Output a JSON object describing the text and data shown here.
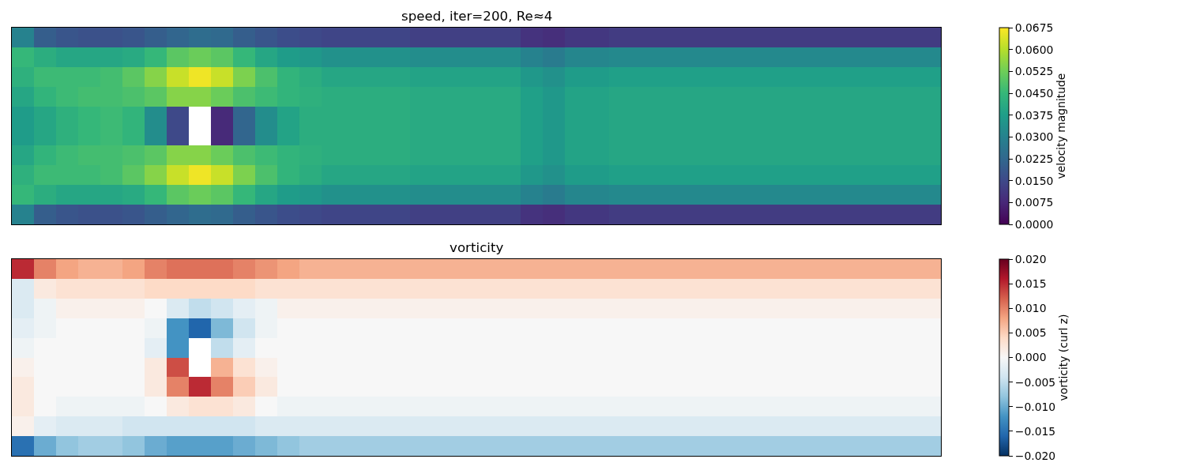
{
  "chart_data": [
    {
      "type": "heatmap",
      "title": "speed, iter=200, Re≈4",
      "clabel": "velocity magnitude",
      "categories": [
        null,
        null,
        null,
        null,
        null,
        null,
        null,
        null,
        null,
        null,
        null,
        null,
        null,
        null,
        null,
        null,
        null,
        null,
        null,
        null,
        null,
        null,
        null,
        null,
        null,
        null,
        null,
        null,
        null,
        null,
        null,
        null,
        null,
        null,
        null,
        null,
        null,
        null,
        null,
        null,
        null,
        null
      ],
      "y_categories": [
        null,
        null,
        null,
        null,
        null,
        null,
        null,
        null,
        null,
        null
      ],
      "cells": [
        [
          0.03,
          0.02,
          0.018,
          0.017,
          0.017,
          0.018,
          0.02,
          0.022,
          0.024,
          0.023,
          0.02,
          0.018,
          0.016,
          0.015,
          0.014,
          0.014,
          0.014,
          0.014,
          0.013,
          0.013,
          0.013,
          0.013,
          0.013,
          0.01,
          0.009,
          0.011,
          0.011,
          0.012,
          0.012,
          0.012,
          0.012,
          0.012,
          0.012,
          0.012,
          0.012,
          0.012,
          0.012,
          0.012,
          0.012,
          0.012,
          0.012,
          0.012
        ],
        [
          0.045,
          0.042,
          0.04,
          0.04,
          0.04,
          0.041,
          0.045,
          0.05,
          0.052,
          0.05,
          0.045,
          0.04,
          0.037,
          0.036,
          0.034,
          0.034,
          0.034,
          0.034,
          0.033,
          0.033,
          0.033,
          0.033,
          0.033,
          0.03,
          0.028,
          0.031,
          0.031,
          0.032,
          0.032,
          0.032,
          0.032,
          0.032,
          0.032,
          0.032,
          0.032,
          0.032,
          0.032,
          0.032,
          0.032,
          0.032,
          0.032,
          0.032
        ],
        [
          0.043,
          0.046,
          0.046,
          0.046,
          0.047,
          0.05,
          0.055,
          0.062,
          0.066,
          0.062,
          0.054,
          0.048,
          0.044,
          0.042,
          0.04,
          0.04,
          0.04,
          0.04,
          0.039,
          0.039,
          0.039,
          0.039,
          0.039,
          0.036,
          0.034,
          0.037,
          0.037,
          0.038,
          0.038,
          0.038,
          0.038,
          0.038,
          0.038,
          0.038,
          0.038,
          0.038,
          0.038,
          0.038,
          0.038,
          0.038,
          0.038,
          0.038
        ],
        [
          0.04,
          0.044,
          0.046,
          0.047,
          0.047,
          0.048,
          0.05,
          0.055,
          0.055,
          0.052,
          0.048,
          0.046,
          0.044,
          0.043,
          0.042,
          0.042,
          0.042,
          0.042,
          0.041,
          0.041,
          0.041,
          0.041,
          0.041,
          0.038,
          0.036,
          0.039,
          0.039,
          0.04,
          0.04,
          0.04,
          0.04,
          0.04,
          0.04,
          0.04,
          0.04,
          0.04,
          0.04,
          0.04,
          0.04,
          0.04,
          0.04,
          0.04
        ],
        [
          0.037,
          0.04,
          0.043,
          0.045,
          0.046,
          0.044,
          0.033,
          0.015,
          null,
          0.008,
          0.022,
          0.033,
          0.039,
          0.042,
          0.042,
          0.042,
          0.042,
          0.042,
          0.041,
          0.041,
          0.041,
          0.041,
          0.041,
          0.038,
          0.036,
          0.039,
          0.039,
          0.04,
          0.04,
          0.04,
          0.04,
          0.04,
          0.04,
          0.04,
          0.04,
          0.04,
          0.04,
          0.04,
          0.04,
          0.04,
          0.04,
          0.04
        ],
        [
          0.037,
          0.04,
          0.043,
          0.045,
          0.046,
          0.044,
          0.033,
          0.015,
          null,
          0.008,
          0.022,
          0.033,
          0.039,
          0.042,
          0.042,
          0.042,
          0.042,
          0.042,
          0.041,
          0.041,
          0.041,
          0.041,
          0.041,
          0.038,
          0.036,
          0.039,
          0.039,
          0.04,
          0.04,
          0.04,
          0.04,
          0.04,
          0.04,
          0.04,
          0.04,
          0.04,
          0.04,
          0.04,
          0.04,
          0.04,
          0.04,
          0.04
        ],
        [
          0.04,
          0.044,
          0.046,
          0.047,
          0.047,
          0.048,
          0.05,
          0.055,
          0.055,
          0.052,
          0.048,
          0.046,
          0.044,
          0.043,
          0.042,
          0.042,
          0.042,
          0.042,
          0.041,
          0.041,
          0.041,
          0.041,
          0.041,
          0.038,
          0.036,
          0.039,
          0.039,
          0.04,
          0.04,
          0.04,
          0.04,
          0.04,
          0.04,
          0.04,
          0.04,
          0.04,
          0.04,
          0.04,
          0.04,
          0.04,
          0.04,
          0.04
        ],
        [
          0.043,
          0.046,
          0.046,
          0.046,
          0.047,
          0.05,
          0.055,
          0.062,
          0.066,
          0.062,
          0.054,
          0.048,
          0.044,
          0.042,
          0.04,
          0.04,
          0.04,
          0.04,
          0.039,
          0.039,
          0.039,
          0.039,
          0.039,
          0.036,
          0.034,
          0.037,
          0.037,
          0.038,
          0.038,
          0.038,
          0.038,
          0.038,
          0.038,
          0.038,
          0.038,
          0.038,
          0.038,
          0.038,
          0.038,
          0.038,
          0.038,
          0.038
        ],
        [
          0.045,
          0.042,
          0.04,
          0.04,
          0.04,
          0.041,
          0.045,
          0.05,
          0.052,
          0.05,
          0.045,
          0.04,
          0.037,
          0.036,
          0.034,
          0.034,
          0.034,
          0.034,
          0.033,
          0.033,
          0.033,
          0.033,
          0.033,
          0.03,
          0.028,
          0.031,
          0.031,
          0.032,
          0.032,
          0.032,
          0.032,
          0.032,
          0.032,
          0.032,
          0.032,
          0.032,
          0.032,
          0.032,
          0.032,
          0.032,
          0.032,
          0.032
        ],
        [
          0.03,
          0.02,
          0.018,
          0.017,
          0.017,
          0.018,
          0.02,
          0.022,
          0.024,
          0.023,
          0.02,
          0.018,
          0.016,
          0.015,
          0.014,
          0.014,
          0.014,
          0.014,
          0.013,
          0.013,
          0.013,
          0.013,
          0.013,
          0.01,
          0.009,
          0.011,
          0.011,
          0.012,
          0.012,
          0.012,
          0.012,
          0.012,
          0.012,
          0.012,
          0.012,
          0.012,
          0.012,
          0.012,
          0.012,
          0.012,
          0.012,
          0.012
        ]
      ],
      "clim": [
        0,
        0.0675
      ],
      "cticks": [
        {
          "value": 0,
          "label": "0.0000"
        },
        {
          "value": 0.0075,
          "label": "0.0075"
        },
        {
          "value": 0.015,
          "label": "0.0150"
        },
        {
          "value": 0.0225,
          "label": "0.0225"
        },
        {
          "value": 0.03,
          "label": "0.0300"
        },
        {
          "value": 0.0375,
          "label": "0.0375"
        },
        {
          "value": 0.045,
          "label": "0.0450"
        },
        {
          "value": 0.0525,
          "label": "0.0525"
        },
        {
          "value": 0.06,
          "label": "0.0600"
        },
        {
          "value": 0.0675,
          "label": "0.0675"
        }
      ]
    },
    {
      "type": "heatmap",
      "title": "vorticity",
      "clabel": "vorticity (curl z)",
      "categories": [
        null,
        null,
        null,
        null,
        null,
        null,
        null,
        null,
        null,
        null,
        null,
        null,
        null,
        null,
        null,
        null,
        null,
        null,
        null,
        null,
        null,
        null,
        null,
        null,
        null,
        null,
        null,
        null,
        null,
        null,
        null,
        null,
        null,
        null,
        null,
        null,
        null,
        null,
        null,
        null,
        null,
        null
      ],
      "y_categories": [
        null,
        null,
        null,
        null,
        null,
        null,
        null,
        null,
        null,
        null
      ],
      "cells": [
        [
          0.015,
          0.01,
          0.008,
          0.007,
          0.007,
          0.008,
          0.01,
          0.011,
          0.011,
          0.011,
          0.01,
          0.009,
          0.008,
          0.007,
          0.007,
          0.007,
          0.007,
          0.007,
          0.007,
          0.007,
          0.007,
          0.007,
          0.007,
          0.007,
          0.007,
          0.007,
          0.007,
          0.007,
          0.007,
          0.007,
          0.007,
          0.007,
          0.007,
          0.007,
          0.007,
          0.007,
          0.007,
          0.007,
          0.007,
          0.007,
          0.007,
          0.007
        ],
        [
          -0.003,
          0.002,
          0.003,
          0.003,
          0.003,
          0.003,
          0.004,
          0.004,
          0.004,
          0.004,
          0.004,
          0.003,
          0.003,
          0.003,
          0.003,
          0.003,
          0.003,
          0.003,
          0.003,
          0.003,
          0.003,
          0.003,
          0.003,
          0.003,
          0.003,
          0.003,
          0.003,
          0.003,
          0.003,
          0.003,
          0.003,
          0.003,
          0.003,
          0.003,
          0.003,
          0.003,
          0.003,
          0.003,
          0.003,
          0.003,
          0.003,
          0.003
        ],
        [
          -0.003,
          -0.001,
          0.001,
          0.001,
          0.001,
          0.001,
          0,
          -0.003,
          -0.005,
          -0.004,
          -0.002,
          -0.001,
          0.001,
          0.001,
          0.001,
          0.001,
          0.001,
          0.001,
          0.001,
          0.001,
          0.001,
          0.001,
          0.001,
          0.001,
          0.001,
          0.001,
          0.001,
          0.001,
          0.001,
          0.001,
          0.001,
          0.001,
          0.001,
          0.001,
          0.001,
          0.001,
          0.001,
          0.001,
          0.001,
          0.001,
          0.001,
          0.001
        ],
        [
          -0.002,
          -0.001,
          0,
          0,
          0,
          0,
          -0.001,
          -0.012,
          -0.016,
          -0.009,
          -0.004,
          -0.001,
          0,
          0,
          0,
          0,
          0,
          0,
          0,
          0,
          0,
          0,
          0,
          0,
          0,
          0,
          0,
          0,
          0,
          0,
          0,
          0,
          0,
          0,
          0,
          0,
          0,
          0,
          0,
          0,
          0,
          0
        ],
        [
          -0.001,
          0,
          0,
          0,
          0,
          0,
          -0.002,
          -0.012,
          null,
          -0.005,
          -0.002,
          0,
          0,
          0,
          0,
          0,
          0,
          0,
          0,
          0,
          0,
          0,
          0,
          0,
          0,
          0,
          0,
          0,
          0,
          0,
          0,
          0,
          0,
          0,
          0,
          0,
          0,
          0,
          0,
          0,
          0,
          0
        ],
        [
          0.001,
          0,
          0,
          0,
          0,
          0,
          0.002,
          0.013,
          null,
          0.007,
          0.003,
          0.001,
          0,
          0,
          0,
          0,
          0,
          0,
          0,
          0,
          0,
          0,
          0,
          0,
          0,
          0,
          0,
          0,
          0,
          0,
          0,
          0,
          0,
          0,
          0,
          0,
          0,
          0,
          0,
          0,
          0,
          0
        ],
        [
          0.002,
          0,
          0,
          0,
          0,
          0,
          0.002,
          0.01,
          0.015,
          0.01,
          0.005,
          0.002,
          0,
          0,
          0,
          0,
          0,
          0,
          0,
          0,
          0,
          0,
          0,
          0,
          0,
          0,
          0,
          0,
          0,
          0,
          0,
          0,
          0,
          0,
          0,
          0,
          0,
          0,
          0,
          0,
          0,
          0
        ],
        [
          0.002,
          0,
          -0.001,
          -0.001,
          -0.001,
          -0.001,
          0,
          0.002,
          0.003,
          0.003,
          0.002,
          0,
          -0.001,
          -0.001,
          -0.001,
          -0.001,
          -0.001,
          -0.001,
          -0.001,
          -0.001,
          -0.001,
          -0.001,
          -0.001,
          -0.001,
          -0.001,
          -0.001,
          -0.001,
          -0.001,
          -0.001,
          -0.001,
          -0.001,
          -0.001,
          -0.001,
          -0.001,
          -0.001,
          -0.001,
          -0.001,
          -0.001,
          -0.001,
          -0.001,
          -0.001,
          -0.001
        ],
        [
          0.001,
          -0.002,
          -0.003,
          -0.003,
          -0.003,
          -0.004,
          -0.004,
          -0.004,
          -0.004,
          -0.004,
          -0.004,
          -0.003,
          -0.003,
          -0.003,
          -0.003,
          -0.003,
          -0.003,
          -0.003,
          -0.003,
          -0.003,
          -0.003,
          -0.003,
          -0.003,
          -0.003,
          -0.003,
          -0.003,
          -0.003,
          -0.003,
          -0.003,
          -0.003,
          -0.003,
          -0.003,
          -0.003,
          -0.003,
          -0.003,
          -0.003,
          -0.003,
          -0.003,
          -0.003,
          -0.003,
          -0.003,
          -0.003
        ],
        [
          -0.015,
          -0.01,
          -0.008,
          -0.007,
          -0.007,
          -0.008,
          -0.01,
          -0.011,
          -0.011,
          -0.011,
          -0.01,
          -0.009,
          -0.008,
          -0.007,
          -0.007,
          -0.007,
          -0.007,
          -0.007,
          -0.007,
          -0.007,
          -0.007,
          -0.007,
          -0.007,
          -0.007,
          -0.007,
          -0.007,
          -0.007,
          -0.007,
          -0.007,
          -0.007,
          -0.007,
          -0.007,
          -0.007,
          -0.007,
          -0.007,
          -0.007,
          -0.007,
          -0.007,
          -0.007,
          -0.007,
          -0.007,
          -0.007
        ]
      ],
      "clim": [
        -0.02,
        0.02
      ],
      "cticks": [
        {
          "value": -0.02,
          "label": "−0.020"
        },
        {
          "value": -0.015,
          "label": "−0.015"
        },
        {
          "value": -0.01,
          "label": "−0.010"
        },
        {
          "value": -0.005,
          "label": "−0.005"
        },
        {
          "value": 0,
          "label": "0.000"
        },
        {
          "value": 0.005,
          "label": "0.005"
        },
        {
          "value": 0.01,
          "label": "0.010"
        },
        {
          "value": 0.015,
          "label": "0.015"
        },
        {
          "value": 0.02,
          "label": "0.020"
        }
      ]
    }
  ]
}
